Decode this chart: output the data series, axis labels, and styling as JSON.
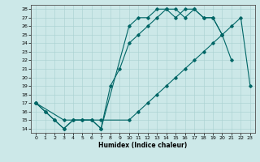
{
  "xlabel": "Humidex (Indice chaleur)",
  "bg_color": "#cce8e8",
  "line_color": "#006666",
  "xlim": [
    -0.5,
    23.5
  ],
  "ylim": [
    13.5,
    28.5
  ],
  "xticks": [
    0,
    1,
    2,
    3,
    4,
    5,
    6,
    7,
    8,
    9,
    10,
    11,
    12,
    13,
    14,
    15,
    16,
    17,
    18,
    19,
    20,
    21,
    22,
    23
  ],
  "yticks": [
    14,
    15,
    16,
    17,
    18,
    19,
    20,
    21,
    22,
    23,
    24,
    25,
    26,
    27,
    28
  ],
  "line1_x": [
    0,
    1,
    2,
    3,
    4,
    5,
    6,
    7,
    8,
    9,
    10,
    11,
    12,
    13,
    14,
    15,
    16,
    17,
    18,
    19,
    20,
    21
  ],
  "line1_y": [
    17,
    16,
    15,
    14,
    15,
    15,
    15,
    14,
    19,
    21,
    24,
    25,
    26,
    27,
    28,
    28,
    27,
    28,
    27,
    27,
    25,
    22
  ],
  "line2_x": [
    0,
    1,
    2,
    3,
    4,
    5,
    6,
    7,
    10,
    11,
    12,
    13,
    14,
    15,
    16,
    17,
    18,
    19,
    20
  ],
  "line2_y": [
    17,
    16,
    15,
    14,
    15,
    15,
    15,
    14,
    26,
    27,
    27,
    28,
    28,
    27,
    28,
    28,
    27,
    27,
    25
  ],
  "line3_x": [
    0,
    3,
    7,
    10,
    11,
    12,
    13,
    14,
    15,
    16,
    17,
    18,
    19,
    20,
    21,
    22,
    23
  ],
  "line3_y": [
    17,
    15,
    15,
    15,
    16,
    17,
    18,
    19,
    20,
    21,
    22,
    23,
    24,
    25,
    26,
    27,
    19
  ]
}
